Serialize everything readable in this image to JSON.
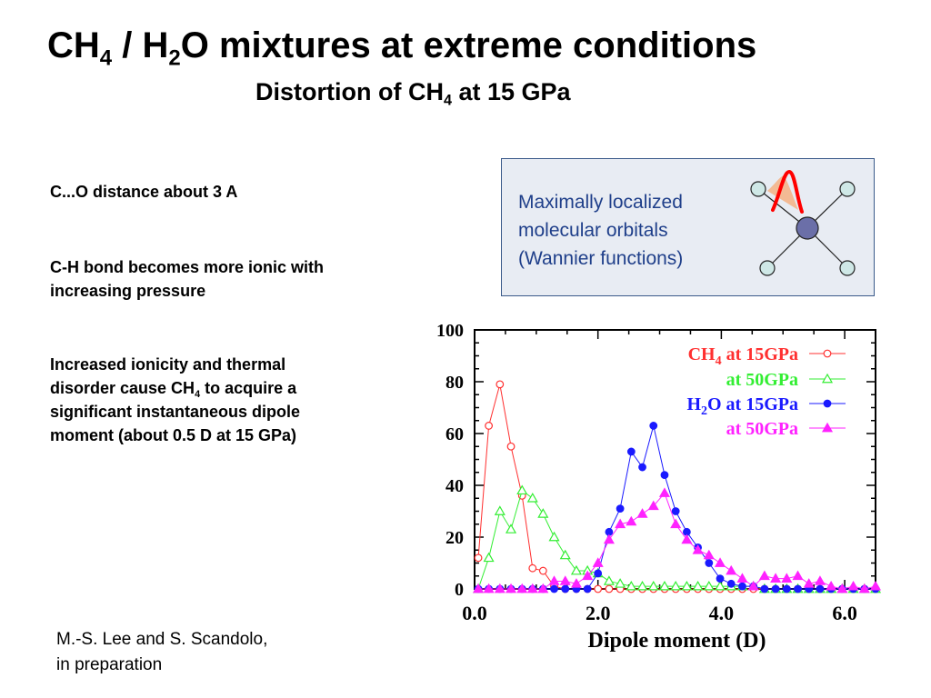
{
  "slide": {
    "title": {
      "pre": "CH",
      "sub1": "4",
      "mid1": " / H",
      "sub2": "2",
      "post": "O mixtures at extreme conditions"
    },
    "subtitle": {
      "pre": "Distortion of CH",
      "sub": "4",
      "post": " at 15 GPa"
    },
    "points": [
      {
        "text": "C...O distance about 3 A"
      },
      {
        "text": "C-H bond becomes more ionic with increasing pressure"
      },
      {
        "pre": "Increased ionicity and thermal disorder cause CH",
        "sub": "4",
        "post": " to acquire a significant instantaneous dipole moment (about 0.5 D at 15 GPa)"
      }
    ],
    "citation": {
      "line1": "M.-S. Lee and S. Scandolo,",
      "line2": "in preparation"
    },
    "wannier_box": {
      "lines": [
        "Maximally localized",
        "molecular orbitals",
        "(Wannier functions)"
      ],
      "colors": {
        "background": "#e8ecf3",
        "border": "#3a5a8a",
        "text": "#1f3f8a",
        "center_atom": "#6b6fa8",
        "h_atoms": "#cfe8e6",
        "orbital": "#ff0000",
        "orbital_fill": "#f4b183"
      }
    }
  },
  "chart_data": {
    "type": "line",
    "xlabel": "Dipole moment (D)",
    "ylabel": "",
    "xlim": [
      0,
      6.5
    ],
    "ylim": [
      0,
      100
    ],
    "xticks": [
      "0.0",
      "2.0",
      "4.0",
      "6.0"
    ],
    "xtick_values": [
      0,
      2,
      4,
      6
    ],
    "yticks": [
      "0",
      "20",
      "40",
      "60",
      "80",
      "100"
    ],
    "ytick_values": [
      0,
      20,
      40,
      60,
      80,
      100
    ],
    "grid": false,
    "legend_position": "top-right",
    "series": [
      {
        "name_main": "CH",
        "name_sub": "4",
        "name_rest": " at 15GPa",
        "color": "#ff3030",
        "marker": "circle-open",
        "x": [
          0.06,
          0.23,
          0.41,
          0.59,
          0.77,
          0.94,
          1.11,
          1.29,
          1.47,
          1.65,
          1.83,
          2.0,
          2.18,
          2.36,
          2.54,
          2.72,
          2.9,
          3.08,
          3.26,
          3.44,
          3.62,
          3.8,
          3.98,
          4.16,
          4.34,
          4.52,
          4.7,
          4.88,
          5.06,
          5.24,
          5.42,
          5.6,
          5.78,
          5.96,
          6.14,
          6.32,
          6.5
        ],
        "y": [
          12,
          63,
          79,
          55,
          36,
          8,
          7,
          1,
          0,
          0,
          0,
          0,
          0,
          0,
          0,
          0,
          0,
          0,
          0,
          0,
          0,
          0,
          0,
          0,
          0,
          0,
          0,
          0,
          0,
          0,
          0,
          0,
          0,
          0,
          0,
          0,
          0
        ]
      },
      {
        "name_main": "",
        "name_sub": "",
        "name_rest": "at 50GPa",
        "color": "#33ee33",
        "marker": "triangle-open",
        "x": [
          0.06,
          0.23,
          0.41,
          0.59,
          0.77,
          0.94,
          1.11,
          1.29,
          1.47,
          1.65,
          1.83,
          2.0,
          2.18,
          2.36,
          2.54,
          2.72,
          2.9,
          3.08,
          3.26,
          3.44,
          3.62,
          3.8,
          3.98,
          4.16,
          4.34,
          4.52,
          4.7,
          4.88,
          5.06,
          5.24,
          5.42,
          5.6,
          5.78,
          5.96,
          6.14,
          6.32,
          6.5
        ],
        "y": [
          0,
          12,
          30,
          23,
          38,
          35,
          29,
          20,
          13,
          7,
          7,
          6,
          3,
          2,
          1,
          1,
          1,
          1,
          1,
          1,
          1,
          1,
          1,
          1,
          1,
          1,
          0,
          0,
          0,
          0,
          0,
          0,
          0,
          0,
          0,
          0,
          0
        ]
      },
      {
        "name_main": "H",
        "name_sub": "2",
        "name_rest": "O at 15GPa",
        "color": "#1a1aff",
        "marker": "circle-filled",
        "x": [
          0.06,
          0.23,
          0.41,
          0.59,
          0.77,
          0.94,
          1.11,
          1.29,
          1.47,
          1.65,
          1.83,
          2.0,
          2.18,
          2.36,
          2.54,
          2.72,
          2.9,
          3.08,
          3.26,
          3.44,
          3.62,
          3.8,
          3.98,
          4.16,
          4.34,
          4.52,
          4.7,
          4.88,
          5.06,
          5.24,
          5.42,
          5.6,
          5.78,
          5.96,
          6.14,
          6.32,
          6.5
        ],
        "y": [
          0,
          0,
          0,
          0,
          0,
          0,
          0,
          0,
          0,
          0,
          0,
          6,
          22,
          31,
          53,
          47,
          63,
          44,
          30,
          22,
          16,
          10,
          4,
          2,
          1,
          1,
          0,
          0,
          0,
          0,
          0,
          0,
          0,
          0,
          0,
          0,
          0
        ]
      },
      {
        "name_main": "",
        "name_sub": "",
        "name_rest": "at 50GPa",
        "color": "#ff22ff",
        "marker": "triangle-filled",
        "x": [
          0.06,
          0.23,
          0.41,
          0.59,
          0.77,
          0.94,
          1.11,
          1.29,
          1.47,
          1.65,
          1.83,
          2.0,
          2.18,
          2.36,
          2.54,
          2.72,
          2.9,
          3.08,
          3.26,
          3.44,
          3.62,
          3.8,
          3.98,
          4.16,
          4.34,
          4.52,
          4.7,
          4.88,
          5.06,
          5.24,
          5.42,
          5.6,
          5.78,
          5.96,
          6.14,
          6.32,
          6.5
        ],
        "y": [
          0,
          0,
          0,
          0,
          0,
          0,
          0,
          3,
          3,
          2,
          5,
          10,
          19,
          25,
          26,
          29,
          32,
          37,
          25,
          19,
          15,
          13,
          10,
          7,
          4,
          1,
          5,
          4,
          4,
          5,
          2,
          3,
          1,
          0,
          1,
          0,
          1
        ]
      }
    ]
  }
}
